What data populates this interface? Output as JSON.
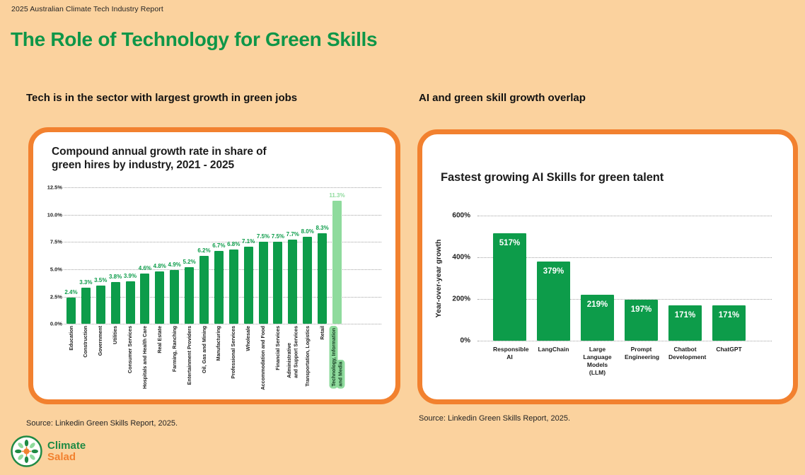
{
  "header": {
    "report_label": "2025 Australian Climate Tech Industry Report",
    "page_title": "The Role of Technology for Green Skills"
  },
  "left_section": {
    "subtitle": "Tech is in the sector with largest growth in green jobs",
    "source": "Source: Linkedin Green Skills Report, 2025."
  },
  "right_section": {
    "subtitle": "AI and green skill growth overlap",
    "source": "Source: Linkedin Green Skills Report, 2025."
  },
  "logo": {
    "line1": "Climate",
    "line2": "Salad"
  },
  "colors": {
    "background": "#fbd29e",
    "card_border": "#f2812f",
    "title_green": "#0e9648",
    "bar_green": "#0d9c4a",
    "highlight_green": "#8fdb9d",
    "text_dark": "#1c1c1c"
  },
  "chart_data": [
    {
      "type": "bar",
      "title": "Compound annual growth rate in share of\ngreen hires by industry, 2021 - 2025",
      "categories": [
        "Education",
        "Construction",
        "Government",
        "Utilities",
        "Consumer Services",
        "Hospitals and Health Care",
        "Real Estate",
        "Farming, Ranching",
        "Entertainment Providers",
        "Oil, Gas and Mining",
        "Manufacturing",
        "Professional Services",
        "Wholesale",
        "Accommodation and Food",
        "Financial Services",
        "Administrative\nand Support Services",
        "Transportation, Logistics",
        "Retail",
        "Technology, Information\nand Media"
      ],
      "values": [
        2.4,
        3.3,
        3.5,
        3.8,
        3.9,
        4.6,
        4.8,
        4.9,
        5.2,
        6.2,
        6.7,
        6.8,
        7.1,
        7.5,
        7.5,
        7.7,
        8.0,
        8.3,
        11.3
      ],
      "value_labels": [
        "2.4%",
        "3.3%",
        "3.5%",
        "3.8%",
        "3.9%",
        "4.6%",
        "4.8%",
        "4.9%",
        "5.2%",
        "6.2%",
        "6.7%",
        "6.8%",
        "7.1%",
        "7.5%",
        "7.5%",
        "7.7%",
        "8.0%",
        "8.3%",
        "11.3%"
      ],
      "xlabel": "",
      "ylabel": "",
      "ylim": [
        0,
        12.5
      ],
      "yticks": [
        "12.5%",
        "10.0%",
        "7.5%",
        "5.0%",
        "2.5%",
        "0.0%"
      ],
      "ytick_values": [
        12.5,
        10.0,
        7.5,
        5.0,
        2.5,
        0.0
      ],
      "grid": "horizontal dotted",
      "legend": "none",
      "bar_color": "#0d9c4a",
      "highlight_index": 18,
      "highlight_color": "#8fdb9d",
      "unit": "%"
    },
    {
      "type": "bar",
      "title": "Fastest growing AI Skills for green talent",
      "categories": [
        "Responsible\nAI",
        "LangChain",
        "Large Language\nModels (LLM)",
        "Prompt\nEngineering",
        "Chatbot\nDevelopment",
        "ChatGPT"
      ],
      "values": [
        517,
        379,
        219,
        197,
        171,
        171
      ],
      "value_labels": [
        "517%",
        "379%",
        "219%",
        "197%",
        "171%",
        "171%"
      ],
      "xlabel": "",
      "ylabel": "Year-over-year growth",
      "ylim": [
        0,
        600
      ],
      "yticks": [
        "600%",
        "400%",
        "200%",
        "0%"
      ],
      "ytick_values": [
        600,
        400,
        200,
        0
      ],
      "grid": "horizontal dotted",
      "legend": "none",
      "bar_color": "#0d9c4a",
      "value_label_color": "#ffffff",
      "unit": "%"
    }
  ]
}
